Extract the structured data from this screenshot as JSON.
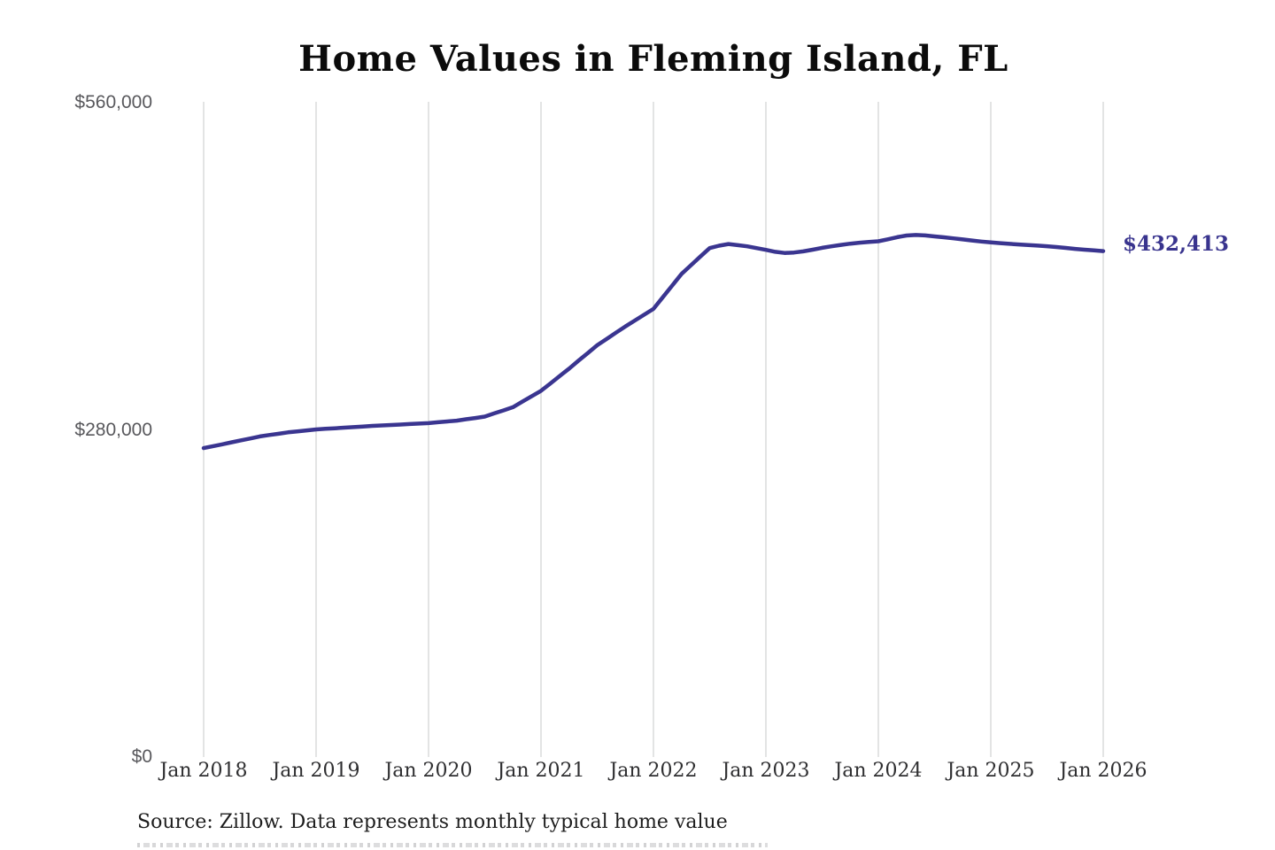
{
  "chart_data": {
    "type": "line",
    "title": "Home Values in Fleming Island, FL",
    "x_tick_labels": [
      "Jan 2018",
      "Jan 2019",
      "Jan 2020",
      "Jan 2021",
      "Jan 2022",
      "Jan 2023",
      "Jan 2024",
      "Jan 2025",
      "Jan 2026"
    ],
    "y_tick_labels": [
      "$0",
      "$280,000",
      "$560,000"
    ],
    "ylim": [
      0,
      560000
    ],
    "grid": "vertical-only",
    "legend": "none",
    "line_color": "#3a3590",
    "gridline_color": "#c7c8ca",
    "end_label": "$432,413",
    "end_value": 432413,
    "series": [
      {
        "name": "Monthly typical home value",
        "start": "Jan 2018",
        "end": "Jan 2026",
        "frequency": "monthly",
        "values": [
          264000,
          265700,
          267300,
          269000,
          270700,
          272300,
          274000,
          275200,
          276300,
          277500,
          278300,
          279200,
          280000,
          280500,
          281000,
          281500,
          282000,
          282500,
          283000,
          283400,
          283800,
          284200,
          284600,
          285000,
          285400,
          286100,
          286800,
          287500,
          288700,
          289800,
          291000,
          293700,
          296300,
          299000,
          303700,
          308300,
          313000,
          319300,
          325700,
          332000,
          338700,
          345300,
          352000,
          357300,
          362700,
          368000,
          373000,
          378000,
          383000,
          393000,
          403000,
          413000,
          420300,
          427700,
          435000,
          437000,
          438500,
          437500,
          436500,
          435000,
          433500,
          431800,
          430800,
          431200,
          432200,
          433600,
          435200,
          436500,
          437700,
          438800,
          439600,
          440200,
          440800,
          442500,
          444300,
          445700,
          446200,
          445800,
          445000,
          444200,
          443300,
          442400,
          441500,
          440600,
          439800,
          439200,
          438600,
          438100,
          437600,
          437100,
          436600,
          435900,
          435100,
          434300,
          433600,
          433000,
          432413
        ]
      }
    ],
    "source_note": "Source: Zillow. Data represents monthly typical home value"
  }
}
